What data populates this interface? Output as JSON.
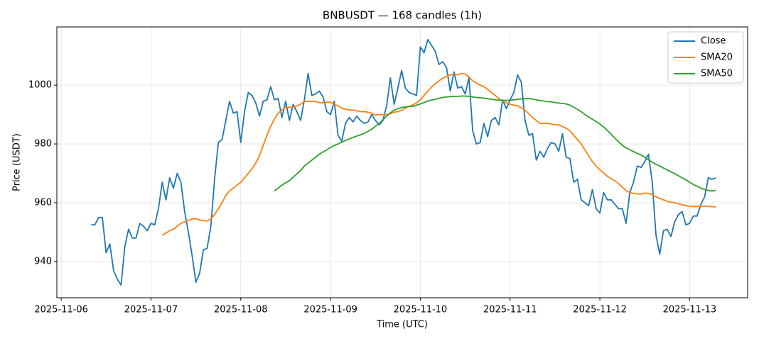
{
  "chart_data": {
    "type": "line",
    "title": "BNBUSDT — 168 candles (1h)",
    "xlabel": "Time (UTC)",
    "ylabel": "Price (USDT)",
    "x": [
      "2025-11-06T08:00",
      "2025-11-06T09:00",
      "2025-11-06T10:00",
      "2025-11-06T11:00",
      "2025-11-06T12:00",
      "2025-11-06T13:00",
      "2025-11-06T14:00",
      "2025-11-06T15:00",
      "2025-11-06T16:00",
      "2025-11-06T17:00",
      "2025-11-06T18:00",
      "2025-11-06T19:00",
      "2025-11-06T20:00",
      "2025-11-06T21:00",
      "2025-11-06T22:00",
      "2025-11-06T23:00",
      "2025-11-07T00:00",
      "2025-11-07T01:00",
      "2025-11-07T02:00",
      "2025-11-07T03:00",
      "2025-11-07T04:00",
      "2025-11-07T05:00",
      "2025-11-07T06:00",
      "2025-11-07T07:00",
      "2025-11-07T08:00",
      "2025-11-07T09:00",
      "2025-11-07T10:00",
      "2025-11-07T11:00",
      "2025-11-07T12:00",
      "2025-11-07T13:00",
      "2025-11-07T14:00",
      "2025-11-07T15:00",
      "2025-11-07T16:00",
      "2025-11-07T17:00",
      "2025-11-07T18:00",
      "2025-11-07T19:00",
      "2025-11-07T20:00",
      "2025-11-07T21:00",
      "2025-11-07T22:00",
      "2025-11-07T23:00",
      "2025-11-08T00:00",
      "2025-11-08T01:00",
      "2025-11-08T02:00",
      "2025-11-08T03:00",
      "2025-11-08T04:00",
      "2025-11-08T05:00",
      "2025-11-08T06:00",
      "2025-11-08T07:00",
      "2025-11-08T08:00",
      "2025-11-08T09:00",
      "2025-11-08T10:00",
      "2025-11-08T11:00",
      "2025-11-08T12:00",
      "2025-11-08T13:00",
      "2025-11-08T14:00",
      "2025-11-08T15:00",
      "2025-11-08T16:00",
      "2025-11-08T17:00",
      "2025-11-08T18:00",
      "2025-11-08T19:00",
      "2025-11-08T20:00",
      "2025-11-08T21:00",
      "2025-11-08T22:00",
      "2025-11-08T23:00",
      "2025-11-09T00:00",
      "2025-11-09T01:00",
      "2025-11-09T02:00",
      "2025-11-09T03:00",
      "2025-11-09T04:00",
      "2025-11-09T05:00",
      "2025-11-09T06:00",
      "2025-11-09T07:00",
      "2025-11-09T08:00",
      "2025-11-09T09:00",
      "2025-11-09T10:00",
      "2025-11-09T11:00",
      "2025-11-09T12:00",
      "2025-11-09T13:00",
      "2025-11-09T14:00",
      "2025-11-09T15:00",
      "2025-11-09T16:00",
      "2025-11-09T17:00",
      "2025-11-09T18:00",
      "2025-11-09T19:00",
      "2025-11-09T20:00",
      "2025-11-09T21:00",
      "2025-11-09T22:00",
      "2025-11-09T23:00",
      "2025-11-10T00:00",
      "2025-11-10T01:00",
      "2025-11-10T02:00",
      "2025-11-10T03:00",
      "2025-11-10T04:00",
      "2025-11-10T05:00",
      "2025-11-10T06:00",
      "2025-11-10T07:00",
      "2025-11-10T08:00",
      "2025-11-10T09:00",
      "2025-11-10T10:00",
      "2025-11-10T11:00",
      "2025-11-10T12:00",
      "2025-11-10T13:00",
      "2025-11-10T14:00",
      "2025-11-10T15:00",
      "2025-11-10T16:00",
      "2025-11-10T17:00",
      "2025-11-10T18:00",
      "2025-11-10T19:00",
      "2025-11-10T20:00",
      "2025-11-10T21:00",
      "2025-11-10T22:00",
      "2025-11-10T23:00",
      "2025-11-11T00:00",
      "2025-11-11T01:00",
      "2025-11-11T02:00",
      "2025-11-11T03:00",
      "2025-11-11T04:00",
      "2025-11-11T05:00",
      "2025-11-11T06:00",
      "2025-11-11T07:00",
      "2025-11-11T08:00",
      "2025-11-11T09:00",
      "2025-11-11T10:00",
      "2025-11-11T11:00",
      "2025-11-11T12:00",
      "2025-11-11T13:00",
      "2025-11-11T14:00",
      "2025-11-11T15:00",
      "2025-11-11T16:00",
      "2025-11-11T17:00",
      "2025-11-11T18:00",
      "2025-11-11T19:00",
      "2025-11-11T20:00",
      "2025-11-11T21:00",
      "2025-11-11T22:00",
      "2025-11-11T23:00",
      "2025-11-12T00:00",
      "2025-11-12T01:00",
      "2025-11-12T02:00",
      "2025-11-12T03:00",
      "2025-11-12T04:00",
      "2025-11-12T05:00",
      "2025-11-12T06:00",
      "2025-11-12T07:00",
      "2025-11-12T08:00",
      "2025-11-12T09:00",
      "2025-11-12T10:00",
      "2025-11-12T11:00",
      "2025-11-12T12:00",
      "2025-11-12T13:00",
      "2025-11-12T14:00",
      "2025-11-12T15:00",
      "2025-11-12T16:00",
      "2025-11-12T17:00",
      "2025-11-12T18:00",
      "2025-11-12T19:00",
      "2025-11-12T20:00",
      "2025-11-12T21:00",
      "2025-11-12T22:00",
      "2025-11-12T23:00",
      "2025-11-13T00:00",
      "2025-11-13T01:00",
      "2025-11-13T02:00",
      "2025-11-13T03:00",
      "2025-11-13T04:00",
      "2025-11-13T05:00",
      "2025-11-13T06:00",
      "2025-11-13T07:00"
    ],
    "series": [
      {
        "name": "Close",
        "color": "#1f77b4",
        "values": [
          952.5,
          952.5,
          955,
          955,
          943,
          946,
          937,
          934,
          932,
          945,
          951,
          948,
          948,
          953,
          952,
          950.5,
          953,
          952.5,
          958,
          967,
          961,
          968.5,
          965,
          970,
          967,
          957,
          950,
          942,
          933,
          936,
          944,
          944.5,
          952,
          968,
          980.5,
          981.5,
          988,
          994.5,
          990.5,
          991,
          980.5,
          991,
          997.5,
          996.5,
          994,
          989.5,
          994.5,
          995,
          999.5,
          995,
          995.5,
          989,
          994.5,
          988,
          993.5,
          991,
          988,
          995,
          1004,
          996.5,
          997,
          998,
          996,
          991,
          990,
          994.5,
          983,
          981,
          987,
          989,
          987.5,
          989.5,
          988,
          987,
          987.5,
          990,
          988,
          986.5,
          988,
          993,
          1002.5,
          993.5,
          999,
          1005,
          999,
          997.5,
          997,
          996.5,
          1013,
          1011,
          1015.5,
          1013.5,
          1011.5,
          1007,
          1008,
          1006,
          998,
          1004.5,
          999,
          999.5,
          997,
          1002.5,
          984.5,
          980,
          980.5,
          987,
          982.5,
          988,
          989,
          986.5,
          995,
          992,
          995,
          997.5,
          1003.5,
          1001,
          988,
          983,
          983.5,
          974.5,
          977.5,
          975.5,
          978.5,
          980.5,
          980,
          977.5,
          983.5,
          975.5,
          975,
          967,
          968,
          961,
          960,
          959,
          964.5,
          958,
          956.5,
          963.5,
          961,
          961,
          959.5,
          958,
          958,
          953,
          963.5,
          967,
          972.5,
          972,
          974,
          976.5,
          967,
          949,
          942.5,
          950.5,
          951,
          948.5,
          953.5,
          956,
          957,
          952.5,
          953,
          955.5,
          955.5,
          959.5,
          962,
          968.5,
          968,
          968.5
        ]
      },
      {
        "name": "SMA20",
        "color": "#ff7f0e",
        "values": [
          null,
          null,
          null,
          null,
          null,
          null,
          null,
          null,
          null,
          null,
          null,
          null,
          null,
          null,
          null,
          null,
          null,
          null,
          null,
          949,
          949.7,
          950.5,
          951,
          952,
          953,
          953.5,
          954,
          954.5,
          954.6,
          954.2,
          953.9,
          953.8,
          954.5,
          956,
          958,
          960,
          962.5,
          964,
          965,
          966,
          967,
          968.5,
          970,
          971.5,
          973.5,
          976,
          979.5,
          983,
          986,
          988.5,
          990.5,
          991.5,
          992.5,
          992.5,
          992.5,
          993,
          993.5,
          994.5,
          994.5,
          994.5,
          994.5,
          994,
          994,
          994.2,
          994.2,
          993.5,
          993,
          992.2,
          991.8,
          991.6,
          991.5,
          991.3,
          991,
          991,
          990.8,
          990.5,
          989.8,
          990,
          990,
          990,
          990.3,
          990.8,
          991,
          991.5,
          992.2,
          992.8,
          993.3,
          994,
          995,
          996.5,
          998,
          999.3,
          1000.5,
          1001.5,
          1002.3,
          1003,
          1003.5,
          1003.8,
          1003.5,
          1004,
          1003.8,
          1002.8,
          1001.5,
          1000.7,
          1000,
          999.5,
          998.5,
          997.5,
          996.5,
          995.5,
          994.5,
          994,
          993.5,
          993.2,
          993,
          992.3,
          991.5,
          990.3,
          989,
          988,
          987,
          987,
          987,
          986.8,
          986.5,
          986.5,
          986,
          985.3,
          984.5,
          983,
          981.5,
          980,
          978,
          976,
          974,
          972.5,
          971.2,
          970.2,
          969,
          968.2,
          967.5,
          966.5,
          965.3,
          964.2,
          963.5,
          963.2,
          963,
          963,
          963.3,
          963.2,
          962.7,
          962,
          961.5,
          961,
          960.5,
          960.2,
          960,
          959.7,
          959.3,
          959,
          958.8,
          958.7,
          958.7,
          958.8,
          958.9,
          958.8,
          958.7,
          958.6
        ]
      },
      {
        "name": "SMA50",
        "color": "#2ca02c",
        "values": [
          null,
          null,
          null,
          null,
          null,
          null,
          null,
          null,
          null,
          null,
          null,
          null,
          null,
          null,
          null,
          null,
          null,
          null,
          null,
          null,
          null,
          null,
          null,
          null,
          null,
          null,
          null,
          null,
          null,
          null,
          null,
          null,
          null,
          null,
          null,
          null,
          null,
          null,
          null,
          null,
          null,
          null,
          null,
          null,
          null,
          null,
          null,
          null,
          null,
          964,
          965,
          966,
          966.8,
          967.5,
          968.7,
          969.8,
          971,
          972.5,
          973.5,
          974.5,
          975.5,
          976.5,
          977.3,
          978,
          978.8,
          979.5,
          980,
          980.6,
          981.2,
          981.7,
          982.2,
          982.7,
          983.1,
          983.6,
          984.3,
          985,
          986,
          987,
          988.2,
          989.5,
          990.6,
          991.5,
          992,
          992.4,
          992.6,
          992.7,
          992.8,
          993.2,
          993.6,
          994.1,
          994.6,
          994.9,
          995.2,
          995.5,
          995.8,
          996,
          996.1,
          996.2,
          996.2,
          996.3,
          996.3,
          996.2,
          996,
          995.8,
          995.7,
          995.6,
          995.4,
          995.2,
          995,
          994.9,
          994.8,
          994.8,
          994.9,
          995,
          995.2,
          995.3,
          995.4,
          995.4,
          995.3,
          995,
          994.8,
          994.6,
          994.4,
          994.3,
          994.1,
          993.9,
          993.8,
          993.6,
          993.2,
          992.5,
          991.8,
          991,
          990,
          989.2,
          988.4,
          987.6,
          986.8,
          985.8,
          984.6,
          983.3,
          982,
          980.7,
          979.6,
          978.7,
          978,
          977.4,
          976.8,
          976.3,
          975.5,
          974.6,
          973.8,
          973.1,
          972.5,
          971.8,
          971.2,
          970.5,
          969.9,
          969.2,
          968.5,
          967.8,
          967,
          966.2,
          965.6,
          965,
          964.5,
          964.2,
          964,
          964.2
        ]
      }
    ],
    "xlim": [
      "2025-11-05T22:50",
      "2025-11-13T15:30"
    ],
    "xticks": [
      "2025-11-06",
      "2025-11-07",
      "2025-11-08",
      "2025-11-09",
      "2025-11-10",
      "2025-11-11",
      "2025-11-12",
      "2025-11-13"
    ],
    "ylim": [
      927.7,
      1019.8
    ],
    "yticks": [
      940,
      960,
      980,
      1000
    ],
    "grid": true,
    "legend": "upper right"
  }
}
